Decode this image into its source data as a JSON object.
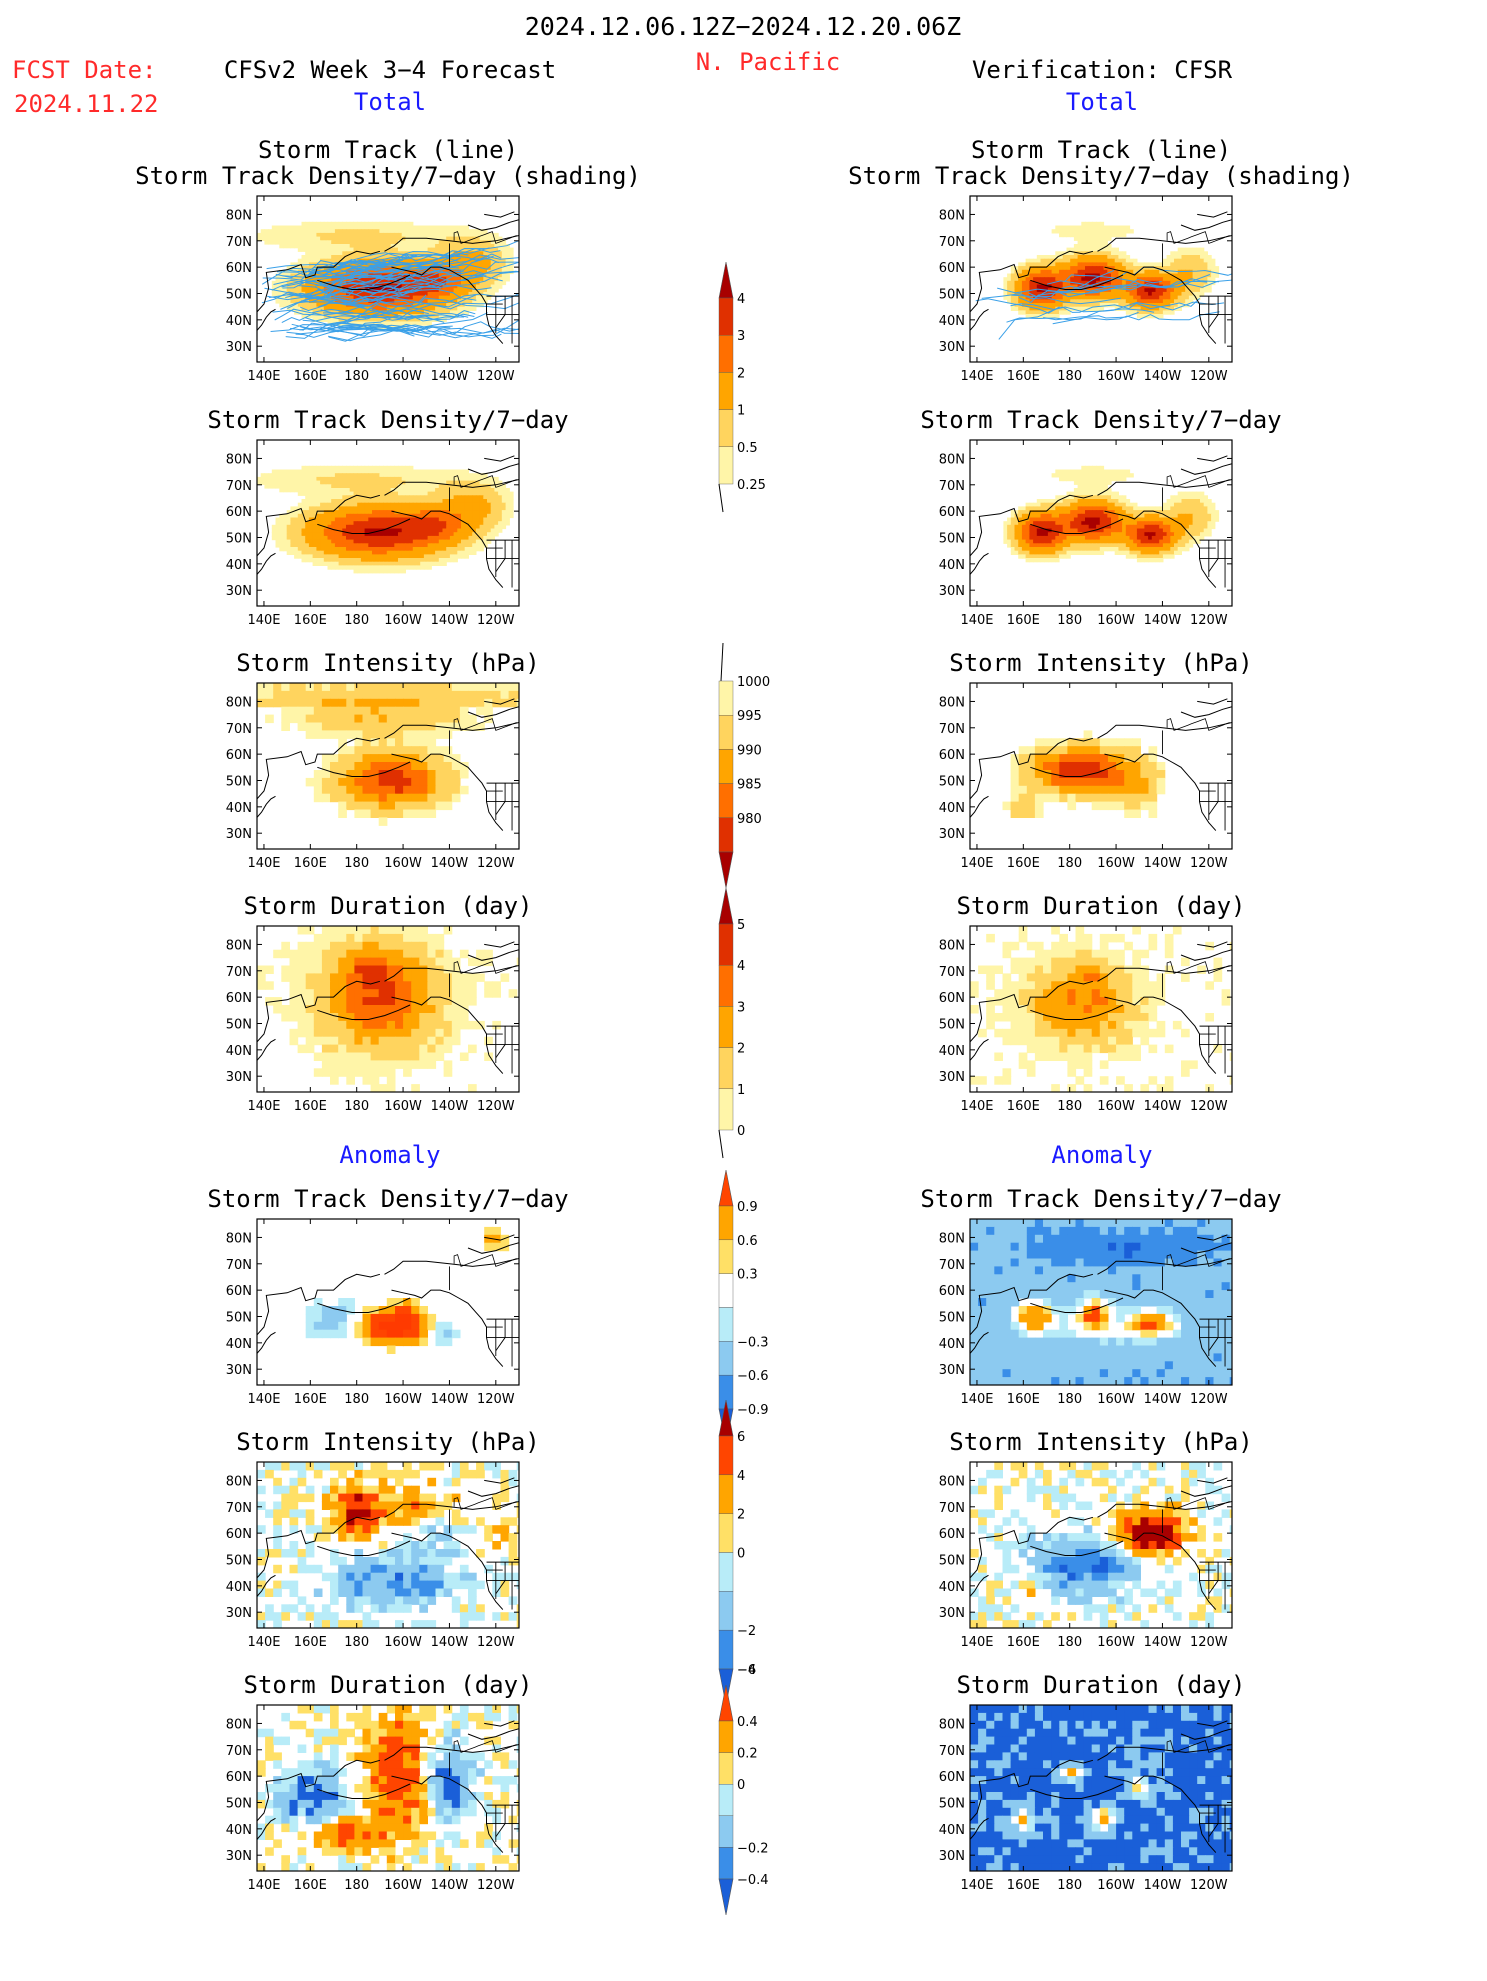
{
  "header": {
    "period": "2024.12.06.12Z−2024.12.20.06Z",
    "fcst_label": "FCST Date:",
    "fcst_date": "2024.11.22",
    "model_label": "CFSv2 Week 3−4 Forecast",
    "region": "N. Pacific",
    "verif_label": "Verification: CFSR",
    "total_left": "Total",
    "total_right": "Total",
    "anomaly_left": "Anomaly",
    "anomaly_right": "Anomaly"
  },
  "axes": {
    "lon_labels": [
      "140E",
      "160E",
      "180",
      "160W",
      "140W",
      "120W"
    ],
    "lat_labels": [
      "80N",
      "70N",
      "60N",
      "50N",
      "40N",
      "30N"
    ]
  },
  "panels": {
    "left": [
      {
        "title1": "Storm Track (line)",
        "title2": "Storm Track Density/7−day (shading)",
        "field": "density",
        "tracks": true,
        "scheme": "warm"
      },
      {
        "title1": "Storm Track Density/7−day",
        "title2": "",
        "field": "density",
        "tracks": false,
        "scheme": "warm"
      },
      {
        "title1": "Storm Intensity (hPa)",
        "title2": "",
        "field": "intensity",
        "tracks": false,
        "scheme": "warm"
      },
      {
        "title1": "Storm Duration (day)",
        "title2": "",
        "field": "duration",
        "tracks": false,
        "scheme": "warm"
      },
      {
        "title1": "Storm Track Density/7−day",
        "title2": "",
        "field": "anom_density",
        "tracks": false,
        "scheme": "div"
      },
      {
        "title1": "Storm Intensity (hPa)",
        "title2": "",
        "field": "anom_intensity",
        "tracks": false,
        "scheme": "div"
      },
      {
        "title1": "Storm Duration (day)",
        "title2": "",
        "field": "anom_duration",
        "tracks": false,
        "scheme": "div"
      }
    ],
    "right": [
      {
        "title1": "Storm Track (line)",
        "title2": "Storm Track Density/7−day (shading)",
        "field": "density",
        "tracks": true,
        "scheme": "warm"
      },
      {
        "title1": "Storm Track Density/7−day",
        "title2": "",
        "field": "density",
        "tracks": false,
        "scheme": "warm"
      },
      {
        "title1": "Storm Intensity (hPa)",
        "title2": "",
        "field": "intensity",
        "tracks": false,
        "scheme": "warm"
      },
      {
        "title1": "Storm Duration (day)",
        "title2": "",
        "field": "duration",
        "tracks": false,
        "scheme": "warm"
      },
      {
        "title1": "Storm Track Density/7−day",
        "title2": "",
        "field": "anom_density",
        "tracks": false,
        "scheme": "div"
      },
      {
        "title1": "Storm Intensity (hPa)",
        "title2": "",
        "field": "anom_intensity",
        "tracks": false,
        "scheme": "div"
      },
      {
        "title1": "Storm Duration (day)",
        "title2": "",
        "field": "anom_duration",
        "tracks": false,
        "scheme": "div"
      }
    ]
  },
  "colorbars": [
    {
      "name": "density-colorbar",
      "labels": [
        "0.25",
        "0.5",
        "1",
        "2",
        "3",
        "4"
      ],
      "colors": [
        "#fff5a8",
        "#ffd45e",
        "#ffa500",
        "#ff6f00",
        "#e03000",
        "#a80000"
      ],
      "arrow_top": true,
      "arrow_bottom": false,
      "line_bottom": true
    },
    {
      "name": "intensity-colorbar",
      "labels": [
        "1000",
        "995",
        "990",
        "985",
        "980"
      ],
      "colors": [
        "#fff5a8",
        "#ffd45e",
        "#ffa500",
        "#ff6f00",
        "#e03000",
        "#a80000"
      ],
      "arrow_top": false,
      "arrow_bottom": true,
      "line_top": true
    },
    {
      "name": "duration-colorbar",
      "labels": [
        "0",
        "1",
        "2",
        "3",
        "4",
        "5"
      ],
      "colors": [
        "#fff5a8",
        "#ffd45e",
        "#ffa500",
        "#ff6f00",
        "#e03000",
        "#a80000"
      ],
      "arrow_top": true,
      "arrow_bottom": false,
      "line_bottom": true
    },
    {
      "name": "anom-density-colorbar",
      "labels": [
        "0.9",
        "0.6",
        "0.3",
        "−0.3",
        "−0.6",
        "−0.9"
      ],
      "colors": [
        "#ff4500",
        "#ffa500",
        "#ffe066",
        "#ffffff",
        "#b8ecf8",
        "#8ccaf0",
        "#3a8ee8",
        "#1a5fd8"
      ],
      "diverging": true
    },
    {
      "name": "anom-intensity-colorbar",
      "labels": [
        "6",
        "4",
        "2",
        "0",
        "−2",
        "−4",
        "−6"
      ],
      "colors": [
        "#a80000",
        "#ff4500",
        "#ffa500",
        "#ffe066",
        "#b8ecf8",
        "#8ccaf0",
        "#3a8ee8",
        "#1a5fd8"
      ],
      "diverging": true
    },
    {
      "name": "anom-duration-colorbar",
      "labels": [
        "0.4",
        "0.2",
        "0",
        "−0.2",
        "−0.4"
      ],
      "colors": [
        "#ff4500",
        "#ffa500",
        "#ffe066",
        "#b8ecf8",
        "#8ccaf0",
        "#3a8ee8",
        "#1a5fd8"
      ],
      "diverging": true
    }
  ],
  "colors": {
    "track_line": "#3aa0e8",
    "coast": "#000000",
    "accent_red": "#ff2a2a",
    "accent_blue": "#1a1aff"
  }
}
